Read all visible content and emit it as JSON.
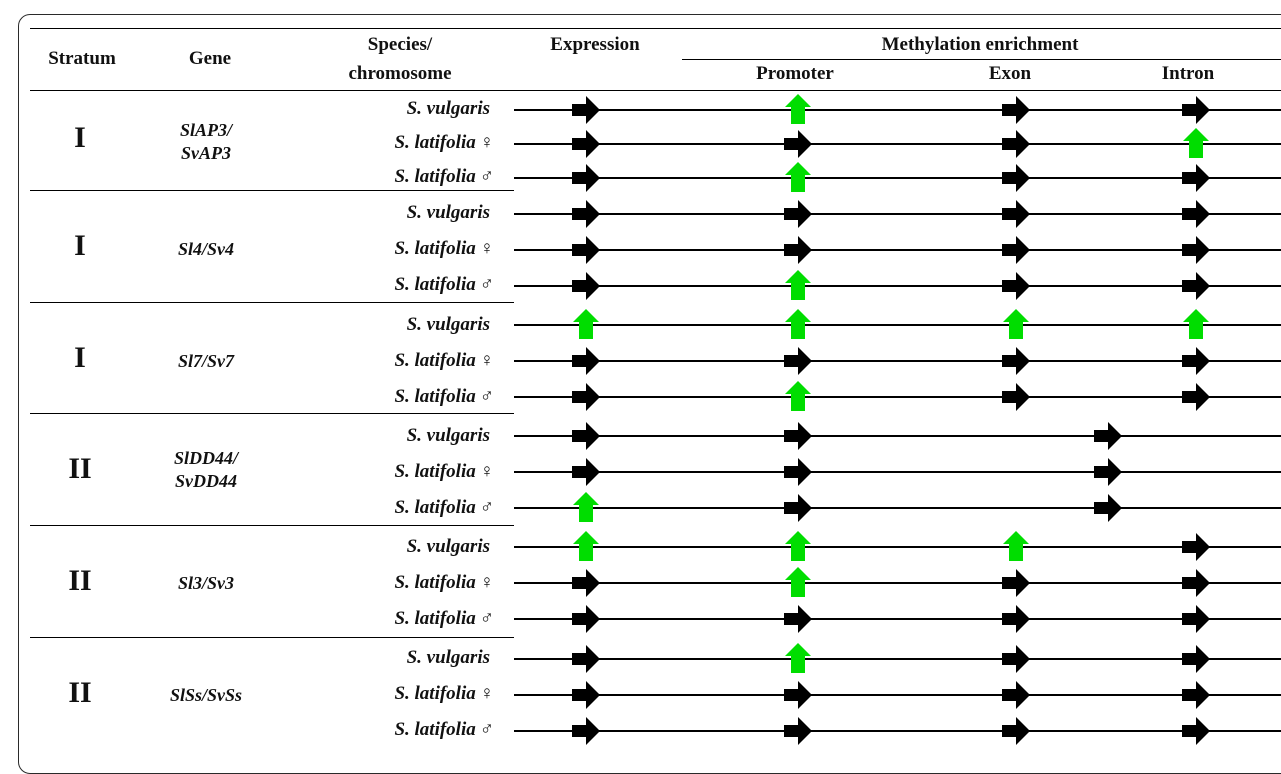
{
  "headers": {
    "stratum": "Stratum",
    "gene": "Gene",
    "species_line1": "Species/",
    "species_line2": "chromosome",
    "expression": "Expression",
    "methylation": "Methylation enrichment",
    "promoter": "Promoter",
    "exon": "Exon",
    "intron": "Intron"
  },
  "legend_colors": {
    "unchanged": "#000000",
    "increased": "#00dd00"
  },
  "arrow_meaning": {
    "right": "unchanged (black right arrow)",
    "up": "increased (green up arrow)"
  },
  "groups": [
    {
      "stratum": "I",
      "gene": [
        "SlAP3/",
        "SvAP3"
      ],
      "rows": [
        {
          "species": "S. vulgaris",
          "sex": "",
          "markers": [
            "right",
            "up",
            "right",
            "right"
          ]
        },
        {
          "species": "S. latifolia",
          "sex": "♀",
          "markers": [
            "right",
            "right",
            "right",
            "up"
          ]
        },
        {
          "species": "S. latifolia",
          "sex": "♂",
          "markers": [
            "right",
            "up",
            "right",
            "right"
          ]
        }
      ]
    },
    {
      "stratum": "I",
      "gene": [
        "Sl4/Sv4"
      ],
      "rows": [
        {
          "species": "S. vulgaris",
          "sex": "",
          "markers": [
            "right",
            "right",
            "right",
            "right"
          ]
        },
        {
          "species": "S. latifolia",
          "sex": "♀",
          "markers": [
            "right",
            "right",
            "right",
            "right"
          ]
        },
        {
          "species": "S. latifolia",
          "sex": "♂",
          "markers": [
            "right",
            "up",
            "right",
            "right"
          ]
        }
      ]
    },
    {
      "stratum": "I",
      "gene": [
        "Sl7/Sv7"
      ],
      "rows": [
        {
          "species": "S. vulgaris",
          "sex": "",
          "markers": [
            "up",
            "up",
            "up",
            "up"
          ]
        },
        {
          "species": "S. latifolia",
          "sex": "♀",
          "markers": [
            "right",
            "right",
            "right",
            "right"
          ]
        },
        {
          "species": "S. latifolia",
          "sex": "♂",
          "markers": [
            "right",
            "up",
            "right",
            "right"
          ]
        }
      ]
    },
    {
      "stratum": "II",
      "gene": [
        "SlDD44/",
        "SvDD44"
      ],
      "rows": [
        {
          "species": "S. vulgaris",
          "sex": "",
          "markers": [
            "right",
            "right",
            "none",
            "right-shifted"
          ]
        },
        {
          "species": "S. latifolia",
          "sex": "♀",
          "markers": [
            "right",
            "right",
            "none",
            "right-shifted"
          ]
        },
        {
          "species": "S. latifolia",
          "sex": "♂",
          "markers": [
            "up",
            "right",
            "none",
            "right-shifted"
          ]
        }
      ]
    },
    {
      "stratum": "II",
      "gene": [
        "Sl3/Sv3"
      ],
      "rows": [
        {
          "species": "S. vulgaris",
          "sex": "",
          "markers": [
            "up",
            "up",
            "up",
            "right"
          ]
        },
        {
          "species": "S. latifolia",
          "sex": "♀",
          "markers": [
            "right",
            "up",
            "right",
            "right"
          ]
        },
        {
          "species": "S. latifolia",
          "sex": "♂",
          "markers": [
            "right",
            "right",
            "right",
            "right"
          ]
        }
      ]
    },
    {
      "stratum": "II",
      "gene": [
        "SlSs/SvSs"
      ],
      "rows": [
        {
          "species": "S. vulgaris",
          "sex": "",
          "markers": [
            "right",
            "up",
            "right",
            "right"
          ]
        },
        {
          "species": "S. latifolia",
          "sex": "♀",
          "markers": [
            "right",
            "right",
            "right",
            "right"
          ]
        },
        {
          "species": "S. latifolia",
          "sex": "♂",
          "markers": [
            "right",
            "right",
            "right",
            "right"
          ]
        }
      ]
    }
  ]
}
